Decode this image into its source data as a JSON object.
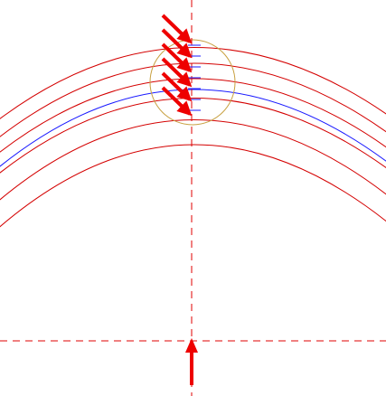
{
  "diagram": {
    "type": "cad-drawing",
    "colors": {
      "background": "#ffffff",
      "arc": "#d40000",
      "blue_arc": "#1a1aff",
      "centerline": "#e00000",
      "arrow": "#ee0000",
      "detail_circle": "#c8a040",
      "tick": "#1a1aff"
    },
    "concentric_arcs": {
      "red_count": 6,
      "blue_count": 1
    },
    "leader_arrows": {
      "count": 6
    },
    "tick_marks": {
      "count": 7
    },
    "icons": [
      "arrow-up-icon",
      "leader-arrow-icon"
    ]
  }
}
